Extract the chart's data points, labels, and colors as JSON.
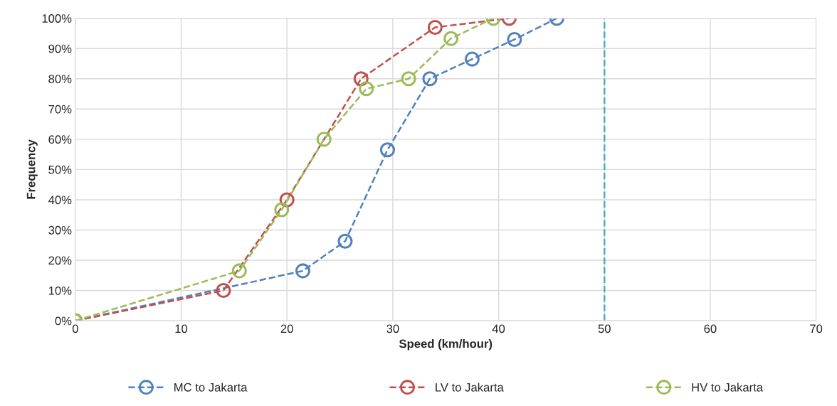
{
  "chart_data": {
    "type": "line",
    "xlabel": "Speed (km/hour)",
    "ylabel": "Frequency",
    "xlim": [
      0,
      70
    ],
    "xticks": [
      0,
      10,
      20,
      30,
      40,
      50,
      60,
      70
    ],
    "ylim": [
      0,
      100
    ],
    "yticks": [
      {
        "value": 0,
        "label": "0%"
      },
      {
        "value": 10,
        "label": "10%"
      },
      {
        "value": 20,
        "label": "20%"
      },
      {
        "value": 30,
        "label": "30%"
      },
      {
        "value": 40,
        "label": "40%"
      },
      {
        "value": 50,
        "label": "50%"
      },
      {
        "value": 60,
        "label": "60%"
      },
      {
        "value": 70,
        "label": "70%"
      },
      {
        "value": 80,
        "label": "80%"
      },
      {
        "value": 90,
        "label": "90%"
      },
      {
        "value": 100,
        "label": "100%"
      }
    ],
    "grid": true,
    "legend": "bottom",
    "marker": "circle",
    "series": [
      {
        "name": "MC to Jakarta",
        "color": "#4f81bd",
        "line_style": "dashed",
        "x": [
          0,
          21.5,
          25.5,
          29.5,
          33.5,
          37.5,
          41.5,
          45.5
        ],
        "values": [
          0,
          16.5,
          26.3,
          56.5,
          80,
          86.5,
          93,
          100
        ]
      },
      {
        "name": "LV to Jakarta",
        "color": "#c0504d",
        "line_style": "dashed",
        "x": [
          0,
          14,
          20,
          27,
          34,
          41
        ],
        "values": [
          0,
          10,
          40,
          80,
          97,
          100
        ]
      },
      {
        "name": "HV to Jakarta",
        "color": "#9bbb59",
        "line_style": "dashed",
        "x": [
          0,
          15.5,
          19.5,
          23.5,
          27.5,
          31.5,
          35.5,
          39.5
        ],
        "values": [
          0,
          16.5,
          36.7,
          60,
          76.7,
          80,
          93.3,
          100
        ]
      }
    ],
    "ref_lines": [
      {
        "axis": "x",
        "value": 50,
        "color": "#4bacc6",
        "line_style": "dashed"
      }
    ]
  }
}
